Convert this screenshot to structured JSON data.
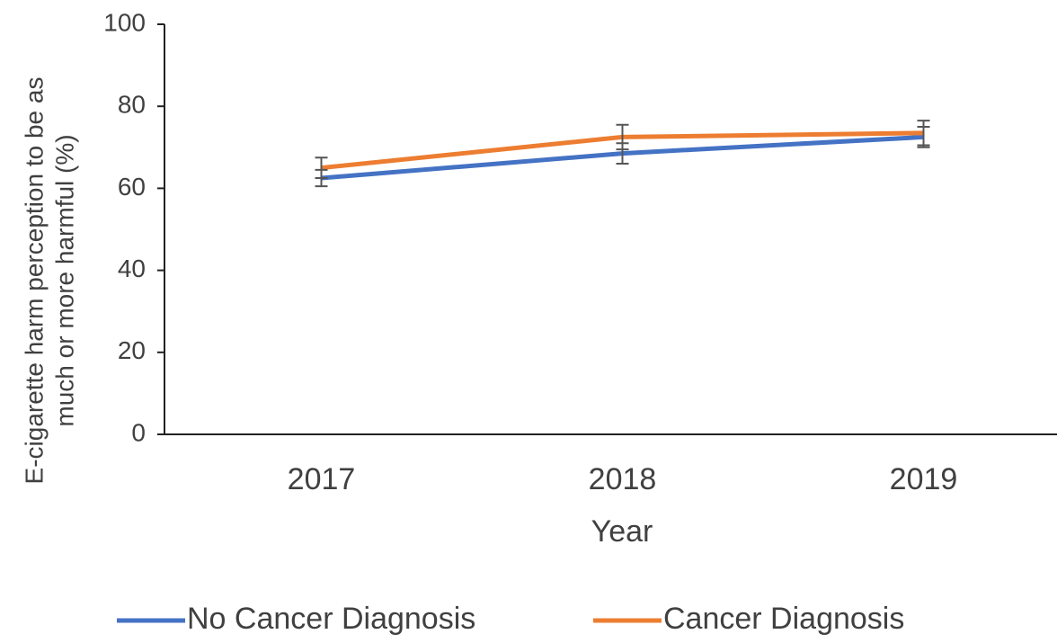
{
  "chart_data": {
    "type": "line",
    "ylabel": [
      "E-cigarette harm perception to be as",
      "much or more harmful (%)"
    ],
    "xlabel": "Year",
    "categories": [
      "2017",
      "2018",
      "2019"
    ],
    "series": [
      {
        "name": "No Cancer Diagnosis",
        "color": "#4472c4",
        "values": [
          62.5,
          68.5,
          72.5
        ],
        "errors": [
          2,
          2.5,
          2.5
        ]
      },
      {
        "name": "Cancer Diagnosis",
        "color": "#ed7d31",
        "values": [
          65,
          72.5,
          73.5
        ],
        "errors": [
          2.5,
          3,
          3
        ]
      }
    ],
    "ylim": [
      0,
      100
    ],
    "yticks": [
      0,
      20,
      40,
      60,
      80,
      100
    ],
    "grid": false,
    "legend": "bottom"
  }
}
